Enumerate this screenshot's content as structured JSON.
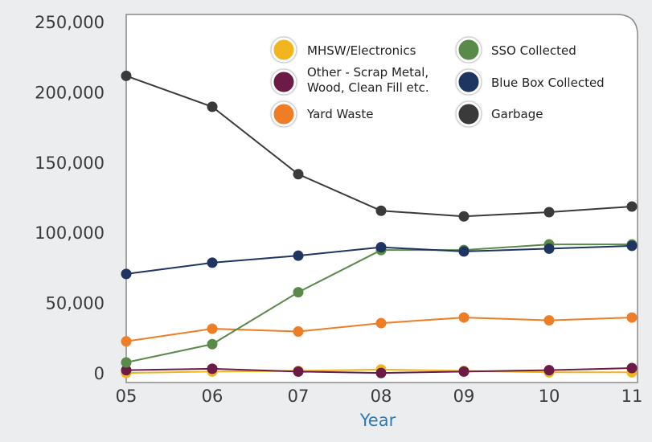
{
  "chart_data": {
    "type": "line",
    "title": "",
    "xlabel": "Year",
    "ylabel": "",
    "categories": [
      "05",
      "06",
      "07",
      "08",
      "09",
      "10",
      "11"
    ],
    "y_ticks": [
      "0",
      "50,000",
      "100,000",
      "150,000",
      "200,000",
      "250,000"
    ],
    "ylim": [
      0,
      250000
    ],
    "grid": false,
    "legend_position": "top-right",
    "series": [
      {
        "name": "Garbage",
        "color": "#3a3a3a",
        "values": [
          212000,
          190000,
          142000,
          116000,
          112000,
          115000,
          119000
        ]
      },
      {
        "name": "Blue Box Collected",
        "color": "#1e3461",
        "values": [
          71000,
          79000,
          84000,
          90000,
          87000,
          89000,
          91000
        ]
      },
      {
        "name": "SSO Collected",
        "color": "#5a8a4a",
        "values": [
          8000,
          21000,
          58000,
          88000,
          88000,
          92000,
          92000
        ]
      },
      {
        "name": "Yard Waste",
        "color": "#ef7d25",
        "values": [
          23000,
          32000,
          30000,
          36000,
          40000,
          38000,
          40000
        ]
      },
      {
        "name": "Other - Scrap Metal, Wood, Clean Fill etc.",
        "color": "#6b1b46",
        "values": [
          2500,
          3500,
          1500,
          500,
          1500,
          2500,
          4000
        ]
      },
      {
        "name": "MHSW/Electronics",
        "color": "#f1b61f",
        "values": [
          500,
          1500,
          2000,
          3000,
          2000,
          1000,
          1000
        ]
      }
    ],
    "legend": [
      {
        "label_lines": [
          "MHSW/Electronics"
        ],
        "color": "#f1b61f"
      },
      {
        "label_lines": [
          "Other - Scrap Metal,",
          "Wood, Clean Fill etc."
        ],
        "color": "#6b1b46"
      },
      {
        "label_lines": [
          "Yard Waste"
        ],
        "color": "#ef7d25"
      },
      {
        "label_lines": [
          "SSO Collected"
        ],
        "color": "#5a8a4a"
      },
      {
        "label_lines": [
          "Blue Box Collected"
        ],
        "color": "#1e3461"
      },
      {
        "label_lines": [
          "Garbage"
        ],
        "color": "#3a3a3a"
      }
    ]
  }
}
